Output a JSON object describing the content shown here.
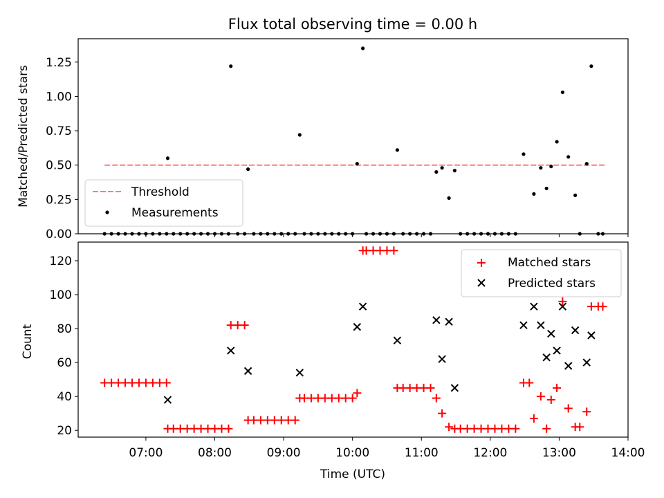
{
  "chart_data": [
    {
      "type": "scatter",
      "title": "Flux total observing time = 0.00 h",
      "ylabel": "Matched/Predicted stars",
      "xlabel": "",
      "xlim": [
        "06:01",
        "14:00"
      ],
      "ylim": [
        0,
        1.42
      ],
      "yticks": [
        "0.00",
        "0.25",
        "0.50",
        "0.75",
        "1.00",
        "1.25"
      ],
      "legend": {
        "placement": "lower-left",
        "entries": [
          "Threshold",
          "Measurements"
        ]
      },
      "threshold": {
        "name": "Threshold",
        "value": 0.5,
        "x_start": "06:24",
        "x_end": "13:40",
        "color": "#ff7b7b",
        "style": "dashed"
      },
      "series": [
        {
          "name": "Measurements",
          "color": "#000000",
          "points": [
            [
              "06:24",
              0
            ],
            [
              "06:30",
              0
            ],
            [
              "06:36",
              0
            ],
            [
              "06:42",
              0
            ],
            [
              "06:48",
              0
            ],
            [
              "06:54",
              0
            ],
            [
              "07:00",
              0
            ],
            [
              "07:06",
              0
            ],
            [
              "07:12",
              0
            ],
            [
              "07:18",
              0
            ],
            [
              "07:19",
              0.55
            ],
            [
              "07:24",
              0
            ],
            [
              "07:30",
              0
            ],
            [
              "07:36",
              0
            ],
            [
              "07:42",
              0
            ],
            [
              "07:48",
              0
            ],
            [
              "07:54",
              0
            ],
            [
              "08:00",
              0
            ],
            [
              "08:06",
              0
            ],
            [
              "08:12",
              0
            ],
            [
              "08:14",
              1.22
            ],
            [
              "08:20",
              0
            ],
            [
              "08:26",
              0
            ],
            [
              "08:29",
              0.47
            ],
            [
              "08:34",
              0
            ],
            [
              "08:40",
              0
            ],
            [
              "08:46",
              0
            ],
            [
              "08:52",
              0
            ],
            [
              "08:58",
              0
            ],
            [
              "09:04",
              0
            ],
            [
              "09:10",
              0
            ],
            [
              "09:14",
              0.72
            ],
            [
              "09:18",
              0
            ],
            [
              "09:24",
              0
            ],
            [
              "09:30",
              0
            ],
            [
              "09:36",
              0
            ],
            [
              "09:42",
              0
            ],
            [
              "09:48",
              0
            ],
            [
              "09:54",
              0
            ],
            [
              "10:00",
              0
            ],
            [
              "10:04",
              0.51
            ],
            [
              "10:09",
              1.35
            ],
            [
              "10:12",
              0
            ],
            [
              "10:18",
              0
            ],
            [
              "10:24",
              0
            ],
            [
              "10:30",
              0
            ],
            [
              "10:36",
              0
            ],
            [
              "10:39",
              0.61
            ],
            [
              "10:44",
              0
            ],
            [
              "10:50",
              0
            ],
            [
              "10:56",
              0
            ],
            [
              "11:02",
              0
            ],
            [
              "11:08",
              0
            ],
            [
              "11:13",
              0.45
            ],
            [
              "11:18",
              0.48
            ],
            [
              "11:24",
              0.26
            ],
            [
              "11:29",
              0.46
            ],
            [
              "11:34",
              0
            ],
            [
              "11:40",
              0
            ],
            [
              "11:46",
              0
            ],
            [
              "11:52",
              0
            ],
            [
              "11:58",
              0
            ],
            [
              "12:04",
              0
            ],
            [
              "12:10",
              0
            ],
            [
              "12:16",
              0
            ],
            [
              "12:22",
              0
            ],
            [
              "12:29",
              0.58
            ],
            [
              "12:38",
              0.29
            ],
            [
              "12:44",
              0.48
            ],
            [
              "12:49",
              0.33
            ],
            [
              "12:53",
              0.49
            ],
            [
              "12:58",
              0.67
            ],
            [
              "13:03",
              1.03
            ],
            [
              "13:08",
              0.56
            ],
            [
              "13:14",
              0.28
            ],
            [
              "13:18",
              0
            ],
            [
              "13:24",
              0.51
            ],
            [
              "13:28",
              1.22
            ],
            [
              "13:34",
              0
            ],
            [
              "13:38",
              0
            ]
          ]
        }
      ]
    },
    {
      "type": "scatter",
      "title": "",
      "ylabel": "Count",
      "xlabel": "Time (UTC)",
      "xlim": [
        "06:01",
        "14:00"
      ],
      "ylim": [
        16,
        131
      ],
      "yticks": [
        "20",
        "40",
        "60",
        "80",
        "100",
        "120"
      ],
      "xticks": [
        "07:00",
        "08:00",
        "09:00",
        "10:00",
        "11:00",
        "12:00",
        "13:00",
        "14:00"
      ],
      "legend": {
        "placement": "top-right",
        "entries": [
          "Matched stars",
          "Predicted stars"
        ]
      },
      "series": [
        {
          "name": "Matched stars",
          "color": "#ff0000",
          "marker": "plus",
          "points": [
            [
              "06:24",
              48
            ],
            [
              "06:30",
              48
            ],
            [
              "06:36",
              48
            ],
            [
              "06:42",
              48
            ],
            [
              "06:48",
              48
            ],
            [
              "06:54",
              48
            ],
            [
              "07:00",
              48
            ],
            [
              "07:06",
              48
            ],
            [
              "07:12",
              48
            ],
            [
              "07:18",
              48
            ],
            [
              "07:19",
              21
            ],
            [
              "07:24",
              21
            ],
            [
              "07:30",
              21
            ],
            [
              "07:36",
              21
            ],
            [
              "07:42",
              21
            ],
            [
              "07:48",
              21
            ],
            [
              "07:54",
              21
            ],
            [
              "08:00",
              21
            ],
            [
              "08:06",
              21
            ],
            [
              "08:12",
              21
            ],
            [
              "08:14",
              82
            ],
            [
              "08:20",
              82
            ],
            [
              "08:26",
              82
            ],
            [
              "08:29",
              26
            ],
            [
              "08:34",
              26
            ],
            [
              "08:40",
              26
            ],
            [
              "08:46",
              26
            ],
            [
              "08:52",
              26
            ],
            [
              "08:58",
              26
            ],
            [
              "09:04",
              26
            ],
            [
              "09:10",
              26
            ],
            [
              "09:14",
              39
            ],
            [
              "09:18",
              39
            ],
            [
              "09:24",
              39
            ],
            [
              "09:30",
              39
            ],
            [
              "09:36",
              39
            ],
            [
              "09:42",
              39
            ],
            [
              "09:48",
              39
            ],
            [
              "09:54",
              39
            ],
            [
              "10:00",
              39
            ],
            [
              "10:04",
              42
            ],
            [
              "10:09",
              126
            ],
            [
              "10:12",
              126
            ],
            [
              "10:18",
              126
            ],
            [
              "10:24",
              126
            ],
            [
              "10:30",
              126
            ],
            [
              "10:36",
              126
            ],
            [
              "10:39",
              45
            ],
            [
              "10:44",
              45
            ],
            [
              "10:50",
              45
            ],
            [
              "10:56",
              45
            ],
            [
              "11:02",
              45
            ],
            [
              "11:08",
              45
            ],
            [
              "11:13",
              39
            ],
            [
              "11:18",
              30
            ],
            [
              "11:24",
              22
            ],
            [
              "11:29",
              21
            ],
            [
              "11:34",
              21
            ],
            [
              "11:40",
              21
            ],
            [
              "11:46",
              21
            ],
            [
              "11:52",
              21
            ],
            [
              "11:58",
              21
            ],
            [
              "12:04",
              21
            ],
            [
              "12:10",
              21
            ],
            [
              "12:16",
              21
            ],
            [
              "12:22",
              21
            ],
            [
              "12:29",
              48
            ],
            [
              "12:34",
              48
            ],
            [
              "12:38",
              27
            ],
            [
              "12:44",
              40
            ],
            [
              "12:49",
              21
            ],
            [
              "12:53",
              38
            ],
            [
              "12:58",
              45
            ],
            [
              "13:03",
              96
            ],
            [
              "13:08",
              33
            ],
            [
              "13:14",
              22
            ],
            [
              "13:18",
              22
            ],
            [
              "13:24",
              31
            ],
            [
              "13:28",
              93
            ],
            [
              "13:34",
              93
            ],
            [
              "13:38",
              93
            ]
          ]
        },
        {
          "name": "Predicted stars",
          "color": "#000000",
          "marker": "x",
          "points": [
            [
              "07:19",
              38
            ],
            [
              "08:14",
              67
            ],
            [
              "08:29",
              55
            ],
            [
              "09:14",
              54
            ],
            [
              "10:04",
              81
            ],
            [
              "10:09",
              93
            ],
            [
              "10:39",
              73
            ],
            [
              "11:13",
              85
            ],
            [
              "11:18",
              62
            ],
            [
              "11:24",
              84
            ],
            [
              "11:29",
              45
            ],
            [
              "12:29",
              82
            ],
            [
              "12:38",
              93
            ],
            [
              "12:44",
              82
            ],
            [
              "12:49",
              63
            ],
            [
              "12:53",
              77
            ],
            [
              "12:58",
              67
            ],
            [
              "13:03",
              93
            ],
            [
              "13:08",
              58
            ],
            [
              "13:14",
              79
            ],
            [
              "13:24",
              60
            ],
            [
              "13:28",
              76
            ]
          ]
        }
      ]
    }
  ]
}
